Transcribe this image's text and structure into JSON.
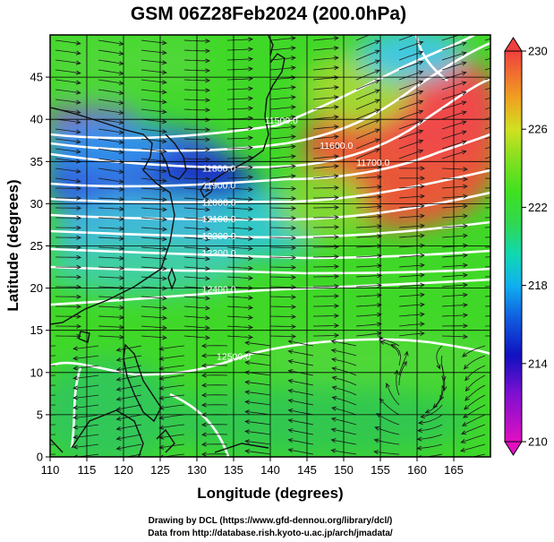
{
  "title": "GSM 06Z28Feb2024 (200.0hPa)",
  "credits": [
    "Drawing by DCL (https://www.gfd-dennou.org/library/dcl/)",
    "Data from http://database.rish.kyoto-u.ac.jp/arch/jmadata/"
  ],
  "chart_data": {
    "type": "heatmap",
    "title": "GSM 06Z28Feb2024 (200.0hPa)",
    "xlabel": "Longitude (degrees)",
    "ylabel": "Latitude  (degrees)",
    "xlim": [
      110,
      170
    ],
    "ylim": [
      0,
      50
    ],
    "xticks": [
      110,
      115,
      120,
      125,
      130,
      135,
      140,
      145,
      150,
      155,
      160,
      165
    ],
    "yticks": [
      0,
      5,
      10,
      15,
      20,
      25,
      30,
      35,
      40,
      45
    ],
    "grid": true,
    "colorbar": {
      "placement": "right",
      "range": [
        210,
        230
      ],
      "ticks": [
        210,
        214,
        218,
        222,
        226,
        230
      ]
    },
    "contours": [
      {
        "label": "11500.0",
        "lat": 39.5,
        "lon": 141.5
      },
      {
        "label": "11600.0",
        "lat": 36.5,
        "lon": 149.0
      },
      {
        "label": "11700.0",
        "lat": 34.5,
        "lon": 154.0
      },
      {
        "label": "11800.0",
        "lat": 33.8,
        "lon": 133.0
      },
      {
        "label": "11900.0",
        "lat": 31.8,
        "lon": 133.0
      },
      {
        "label": "12000.0",
        "lat": 29.8,
        "lon": 133.0
      },
      {
        "label": "12100.0",
        "lat": 27.8,
        "lon": 133.0
      },
      {
        "label": "12200.0",
        "lat": 25.8,
        "lon": 133.0
      },
      {
        "label": "12300.0",
        "lat": 23.8,
        "lon": 133.0
      },
      {
        "label": "12400.0",
        "lat": 19.5,
        "lon": 133.0
      },
      {
        "label": "12500.0",
        "lat": 11.5,
        "lon": 135.0
      }
    ]
  }
}
